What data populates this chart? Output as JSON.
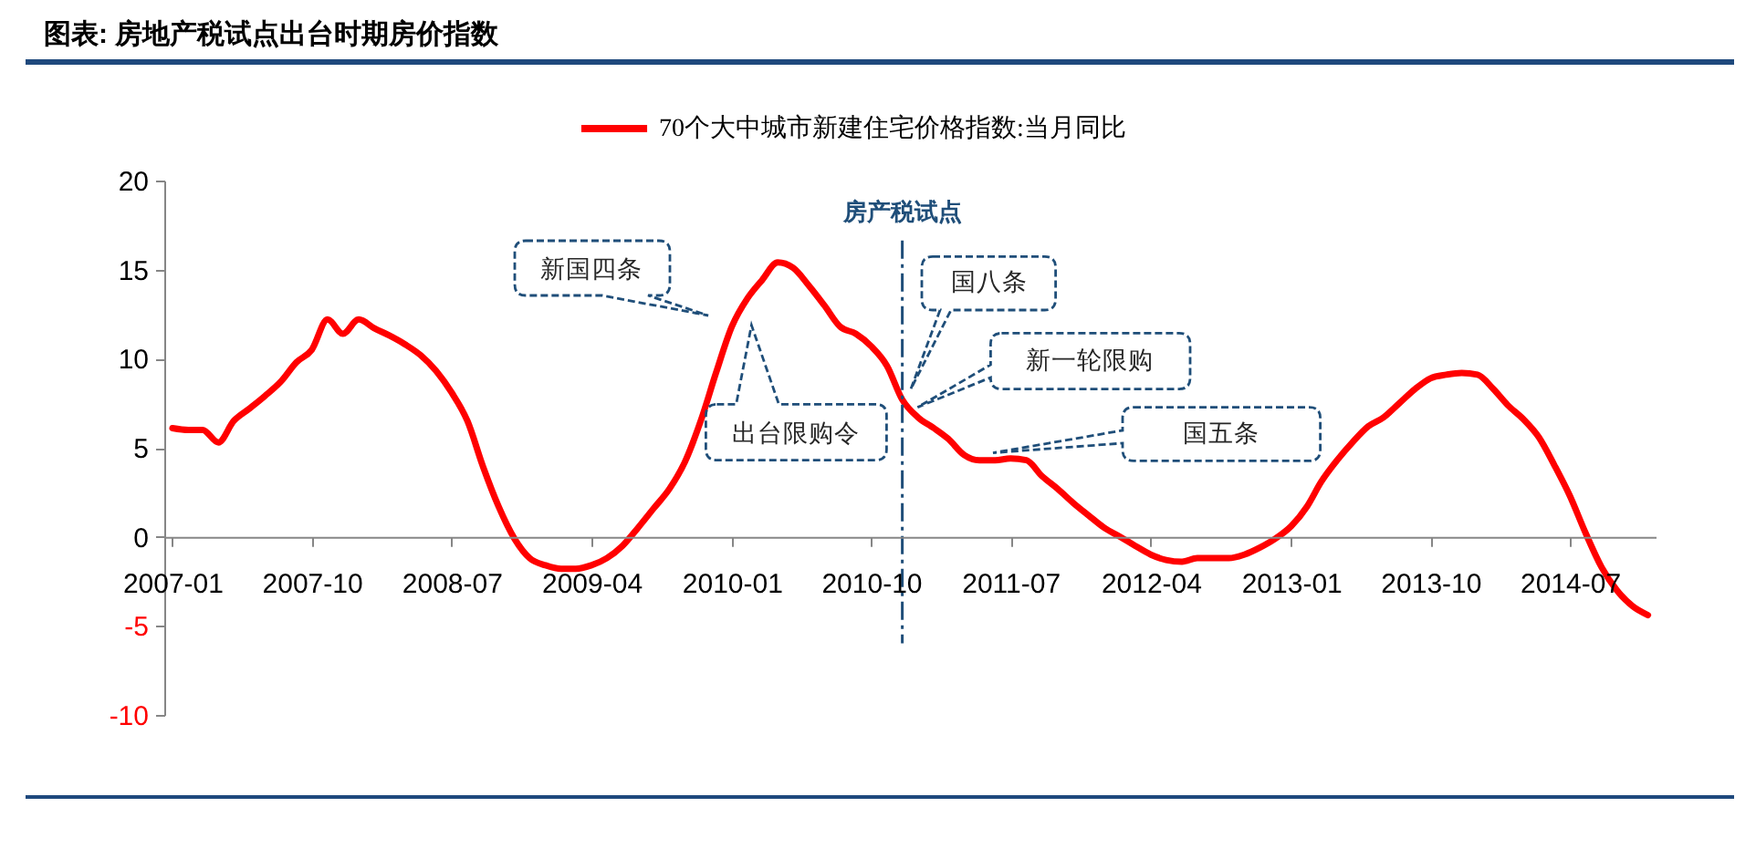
{
  "chart_data": {
    "type": "line",
    "title": "图表: 房地产税试点出台时期房价指数",
    "x": [
      "2007-01",
      "2007-02",
      "2007-03",
      "2007-04",
      "2007-05",
      "2007-06",
      "2007-07",
      "2007-08",
      "2007-09",
      "2007-10",
      "2007-11",
      "2007-12",
      "2008-01",
      "2008-02",
      "2008-03",
      "2008-04",
      "2008-05",
      "2008-06",
      "2008-07",
      "2008-08",
      "2008-09",
      "2008-10",
      "2008-11",
      "2008-12",
      "2009-01",
      "2009-02",
      "2009-03",
      "2009-04",
      "2009-05",
      "2009-06",
      "2009-07",
      "2009-08",
      "2009-09",
      "2009-10",
      "2009-11",
      "2009-12",
      "2010-01",
      "2010-02",
      "2010-03",
      "2010-04",
      "2010-05",
      "2010-06",
      "2010-07",
      "2010-08",
      "2010-09",
      "2010-10",
      "2010-11",
      "2010-12",
      "2011-01",
      "2011-02",
      "2011-03",
      "2011-04",
      "2011-05",
      "2011-06",
      "2011-07",
      "2011-08",
      "2011-09",
      "2011-10",
      "2011-11",
      "2011-12",
      "2012-01",
      "2012-02",
      "2012-03",
      "2012-04",
      "2012-05",
      "2012-06",
      "2012-07",
      "2012-08",
      "2012-09",
      "2012-10",
      "2012-11",
      "2012-12",
      "2013-01",
      "2013-02",
      "2013-03",
      "2013-04",
      "2013-05",
      "2013-06",
      "2013-07",
      "2013-08",
      "2013-09",
      "2013-10",
      "2013-11",
      "2013-12",
      "2014-01",
      "2014-02",
      "2014-03",
      "2014-04",
      "2014-05",
      "2014-06",
      "2014-07",
      "2014-08",
      "2014-09",
      "2014-10",
      "2014-11",
      "2014-12"
    ],
    "series": [
      {
        "name": "70个大中城市新建住宅价格指数:当月同比",
        "color": "#ff0000",
        "values": [
          6.1,
          6.0,
          6.0,
          5.3,
          6.5,
          7.2,
          7.9,
          8.7,
          9.8,
          10.5,
          12.2,
          11.4,
          12.2,
          11.7,
          11.3,
          10.8,
          10.2,
          9.3,
          8.1,
          6.5,
          3.9,
          1.7,
          -0.1,
          -1.2,
          -1.6,
          -1.8,
          -1.8,
          -1.6,
          -1.2,
          -0.5,
          0.5,
          1.6,
          2.7,
          4.2,
          6.5,
          9.2,
          11.8,
          13.4,
          14.4,
          15.4,
          15.1,
          14.1,
          13.0,
          11.8,
          11.4,
          10.7,
          9.6,
          7.7,
          6.7,
          6.1,
          5.5,
          4.6,
          4.3,
          4.3,
          4.4,
          4.3,
          3.4,
          2.7,
          1.9,
          1.2,
          0.5,
          0.0,
          -0.5,
          -1.0,
          -1.3,
          -1.4,
          -1.2,
          -1.2,
          -1.2,
          -1.0,
          -0.6,
          -0.1,
          0.6,
          1.7,
          3.1,
          4.3,
          5.3,
          6.2,
          6.7,
          7.5,
          8.3,
          8.9,
          9.1,
          9.2,
          9.1,
          8.3,
          7.4,
          6.6,
          5.6,
          4.0,
          2.3,
          0.2,
          -1.7,
          -3.0,
          -3.9,
          -4.4
        ]
      }
    ],
    "xlim": [
      "2006-12-16",
      "2014-12-16"
    ],
    "xticks": [
      "2007-01",
      "2007-10",
      "2008-07",
      "2009-04",
      "2010-01",
      "2010-10",
      "2011-07",
      "2012-04",
      "2013-01",
      "2013-10",
      "2014-07"
    ],
    "ylim": [
      -10,
      20
    ],
    "yticks": [
      -10,
      -5,
      0,
      5,
      10,
      15,
      20
    ],
    "ref_lines": [
      {
        "axis": "x",
        "value": "2010-12",
        "label": "房产税试点",
        "color": "#1f4e79",
        "line_style": "dashdot"
      }
    ],
    "annotations": [
      "新国四条",
      "出台限购令",
      "国八条",
      "新一轮限购",
      "国五条"
    ],
    "legend": "top",
    "grid": false,
    "marker": "none",
    "line_style": "solid"
  }
}
